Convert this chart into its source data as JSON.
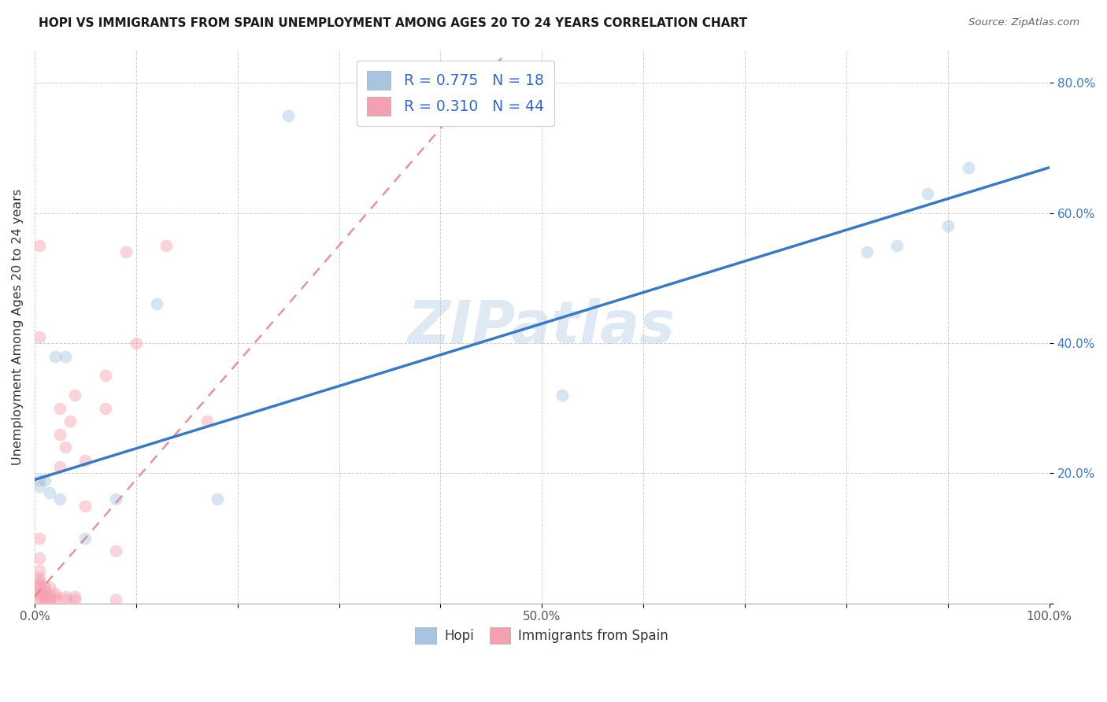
{
  "title": "HOPI VS IMMIGRANTS FROM SPAIN UNEMPLOYMENT AMONG AGES 20 TO 24 YEARS CORRELATION CHART",
  "source": "Source: ZipAtlas.com",
  "ylabel": "Unemployment Among Ages 20 to 24 years",
  "xlim": [
    0,
    1.0
  ],
  "ylim": [
    0,
    0.85
  ],
  "xticks": [
    0.0,
    0.1,
    0.2,
    0.3,
    0.4,
    0.5,
    0.6,
    0.7,
    0.8,
    0.9,
    1.0
  ],
  "xticklabels": [
    "0.0%",
    "",
    "",
    "",
    "",
    "50.0%",
    "",
    "",
    "",
    "",
    "100.0%"
  ],
  "yticks": [
    0.0,
    0.2,
    0.4,
    0.6,
    0.8
  ],
  "yticklabels": [
    "",
    "20.0%",
    "40.0%",
    "60.0%",
    "80.0%"
  ],
  "hopi_color": "#a8c4e0",
  "spain_color": "#f4a0b0",
  "hopi_trend_color": "#3a7abf",
  "spain_trend_color": "#e08090",
  "legend_R_color": "#3366cc",
  "hopi_R": 0.775,
  "hopi_N": 18,
  "spain_R": 0.31,
  "spain_N": 44,
  "hopi_x": [
    0.005,
    0.01,
    0.015,
    0.02,
    0.025,
    0.03,
    0.05,
    0.08,
    0.12,
    0.18,
    0.25,
    0.52,
    0.82,
    0.85,
    0.88,
    0.9,
    0.92,
    0.005
  ],
  "hopi_y": [
    0.18,
    0.19,
    0.17,
    0.38,
    0.16,
    0.38,
    0.1,
    0.16,
    0.46,
    0.16,
    0.75,
    0.32,
    0.54,
    0.55,
    0.63,
    0.58,
    0.67,
    0.19
  ],
  "spain_x": [
    0.005,
    0.005,
    0.005,
    0.005,
    0.005,
    0.005,
    0.005,
    0.005,
    0.005,
    0.005,
    0.005,
    0.01,
    0.01,
    0.01,
    0.01,
    0.01,
    0.015,
    0.015,
    0.015,
    0.02,
    0.02,
    0.02,
    0.025,
    0.025,
    0.025,
    0.03,
    0.03,
    0.03,
    0.035,
    0.04,
    0.04,
    0.04,
    0.05,
    0.05,
    0.07,
    0.07,
    0.08,
    0.08,
    0.09,
    0.1,
    0.13,
    0.17,
    0.005,
    0.005
  ],
  "spain_y": [
    0.005,
    0.01,
    0.015,
    0.02,
    0.025,
    0.03,
    0.035,
    0.04,
    0.05,
    0.07,
    0.1,
    0.005,
    0.01,
    0.015,
    0.02,
    0.025,
    0.005,
    0.01,
    0.025,
    0.005,
    0.01,
    0.015,
    0.21,
    0.26,
    0.3,
    0.005,
    0.01,
    0.24,
    0.28,
    0.005,
    0.01,
    0.32,
    0.15,
    0.22,
    0.3,
    0.35,
    0.005,
    0.08,
    0.54,
    0.4,
    0.55,
    0.28,
    0.41,
    0.55
  ],
  "watermark": "ZIPatlas",
  "background_color": "#ffffff",
  "grid_color": "#cccccc",
  "marker_size": 130,
  "marker_alpha": 0.45
}
